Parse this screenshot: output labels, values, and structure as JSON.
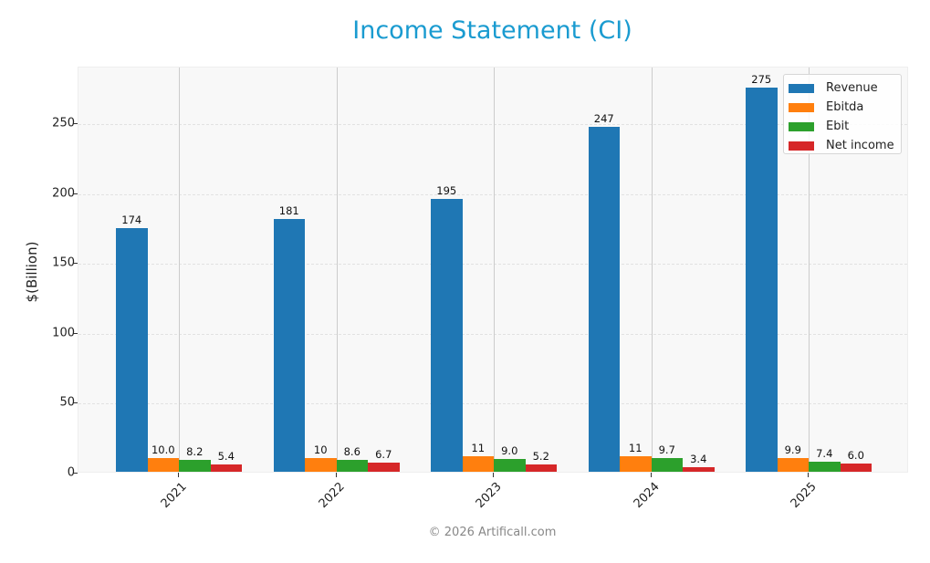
{
  "title": "Income Statement (CI)",
  "footer": "© 2026 Artificall.com",
  "colors": {
    "title": "#1a9bd0",
    "Revenue": "#1f77b4",
    "Ebitda": "#ff7f0e",
    "Ebit": "#2ca02c",
    "Net income": "#d62728"
  },
  "chart_data": {
    "type": "bar",
    "title": "Income Statement (CI)",
    "xlabel": "",
    "ylabel": "$(Billion)",
    "ylim": [
      0,
      290
    ],
    "yticks": [
      0,
      50,
      100,
      150,
      200,
      250
    ],
    "categories": [
      "2021",
      "2022",
      "2023",
      "2024",
      "2025"
    ],
    "series": [
      {
        "name": "Revenue",
        "values": [
          174,
          181,
          195,
          247,
          275
        ],
        "labels": [
          "174",
          "181",
          "195",
          "247",
          "275"
        ]
      },
      {
        "name": "Ebitda",
        "values": [
          10.0,
          10,
          11,
          11,
          9.9
        ],
        "labels": [
          "10.0",
          "10",
          "11",
          "11",
          "9.9"
        ]
      },
      {
        "name": "Ebit",
        "values": [
          8.2,
          8.6,
          9.0,
          9.7,
          7.4
        ],
        "labels": [
          "8.2",
          "8.6",
          "9.0",
          "9.7",
          "7.4"
        ]
      },
      {
        "name": "Net income",
        "values": [
          5.4,
          6.7,
          5.2,
          3.4,
          6.0
        ],
        "labels": [
          "5.4",
          "6.7",
          "5.2",
          "3.4",
          "6.0"
        ]
      }
    ],
    "legend_position": "upper right",
    "grid": true,
    "xtick_rotation": 45
  }
}
